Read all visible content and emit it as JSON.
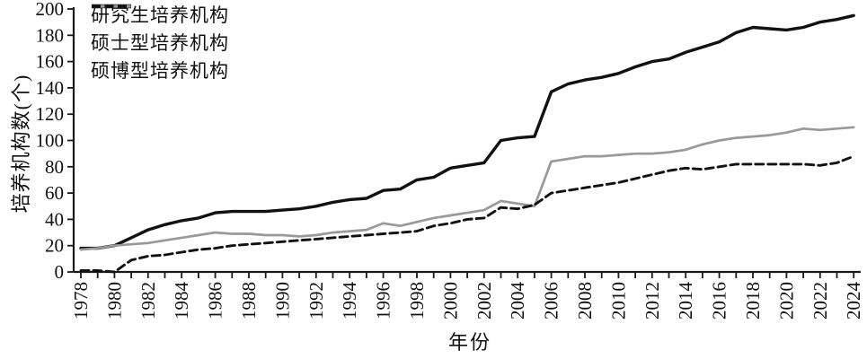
{
  "chart_data": {
    "type": "line",
    "title": "",
    "xlabel": "年份",
    "ylabel": "培养机构数(个)",
    "ylim": [
      0,
      200
    ],
    "y_ticks": [
      0,
      20,
      40,
      60,
      80,
      100,
      120,
      140,
      160,
      180,
      200
    ],
    "x_label_step": 2,
    "grid": false,
    "legend_position": "top-left",
    "axis_color": "#1a1a1a",
    "x": [
      1978,
      1979,
      1980,
      1981,
      1982,
      1983,
      1984,
      1985,
      1986,
      1987,
      1988,
      1989,
      1990,
      1991,
      1992,
      1993,
      1994,
      1995,
      1996,
      1997,
      1998,
      1999,
      2000,
      2001,
      2002,
      2003,
      2004,
      2005,
      2006,
      2007,
      2008,
      2009,
      2010,
      2011,
      2012,
      2013,
      2014,
      2015,
      2016,
      2017,
      2018,
      2019,
      2020,
      2021,
      2022,
      2023,
      2024
    ],
    "series": [
      {
        "name": "研究生培养机构",
        "color": "#111111",
        "style": "solid",
        "width": 3.4,
        "values": [
          18,
          18,
          20,
          26,
          32,
          36,
          39,
          41,
          45,
          46,
          46,
          46,
          47,
          48,
          50,
          53,
          55,
          56,
          62,
          63,
          70,
          72,
          79,
          81,
          83,
          100,
          102,
          103,
          137,
          143,
          146,
          148,
          151,
          156,
          160,
          162,
          167,
          171,
          175,
          182,
          186,
          185,
          184,
          186,
          190,
          192,
          195
        ]
      },
      {
        "name": "硕士型培养机构",
        "color": "#999999",
        "style": "solid",
        "width": 2.7,
        "values": [
          17,
          18,
          20,
          21,
          22,
          24,
          26,
          28,
          30,
          29,
          29,
          28,
          28,
          27,
          28,
          30,
          31,
          32,
          37,
          35,
          38,
          41,
          43,
          45,
          47,
          54,
          52,
          50,
          84,
          86,
          88,
          88,
          89,
          90,
          90,
          91,
          93,
          97,
          100,
          102,
          103,
          104,
          106,
          109,
          108,
          109,
          110
        ]
      },
      {
        "name": "硕博型培养机构",
        "color": "#111111",
        "style": "dashed",
        "width": 2.9,
        "values": [
          1,
          1,
          0,
          9,
          12,
          13,
          15,
          17,
          18,
          20,
          21,
          22,
          23,
          24,
          25,
          26,
          27,
          28,
          29,
          30,
          31,
          35,
          37,
          40,
          41,
          49,
          48,
          51,
          60,
          62,
          64,
          66,
          68,
          71,
          74,
          77,
          79,
          78,
          80,
          82,
          82,
          82,
          82,
          82,
          81,
          83,
          88
        ]
      }
    ]
  }
}
